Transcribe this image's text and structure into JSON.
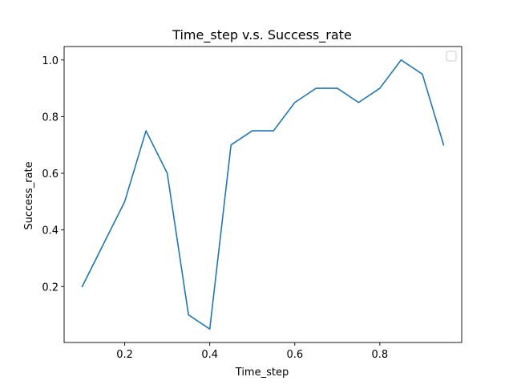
{
  "chart_data": {
    "type": "line",
    "title": "Time_step v.s. Success_rate",
    "xlabel": "Time_step",
    "ylabel": "Success_rate",
    "xlim": [
      0.0575,
      0.9925
    ],
    "ylim": [
      0.0025,
      1.0475
    ],
    "xticks": [
      0.2,
      0.4,
      0.6,
      0.8
    ],
    "xtick_labels": [
      "0.2",
      "0.4",
      "0.6",
      "0.8"
    ],
    "yticks": [
      0.2,
      0.4,
      0.6,
      0.8,
      1.0
    ],
    "ytick_labels": [
      "0.2",
      "0.4",
      "0.6",
      "0.8",
      "1.0"
    ],
    "grid": false,
    "legend": "top-right",
    "series": [
      {
        "color": "#1f77b4",
        "x": [
          0.1,
          0.15,
          0.2,
          0.25,
          0.3,
          0.35,
          0.4,
          0.45,
          0.5,
          0.55,
          0.6,
          0.65,
          0.7,
          0.75,
          0.8,
          0.85,
          0.9,
          0.95
        ],
        "y": [
          0.2,
          0.35,
          0.5,
          0.75,
          0.6,
          0.1,
          0.05,
          0.7,
          0.75,
          0.75,
          0.85,
          0.9,
          0.9,
          0.85,
          0.9,
          1.0,
          0.95,
          0.7
        ]
      }
    ]
  }
}
